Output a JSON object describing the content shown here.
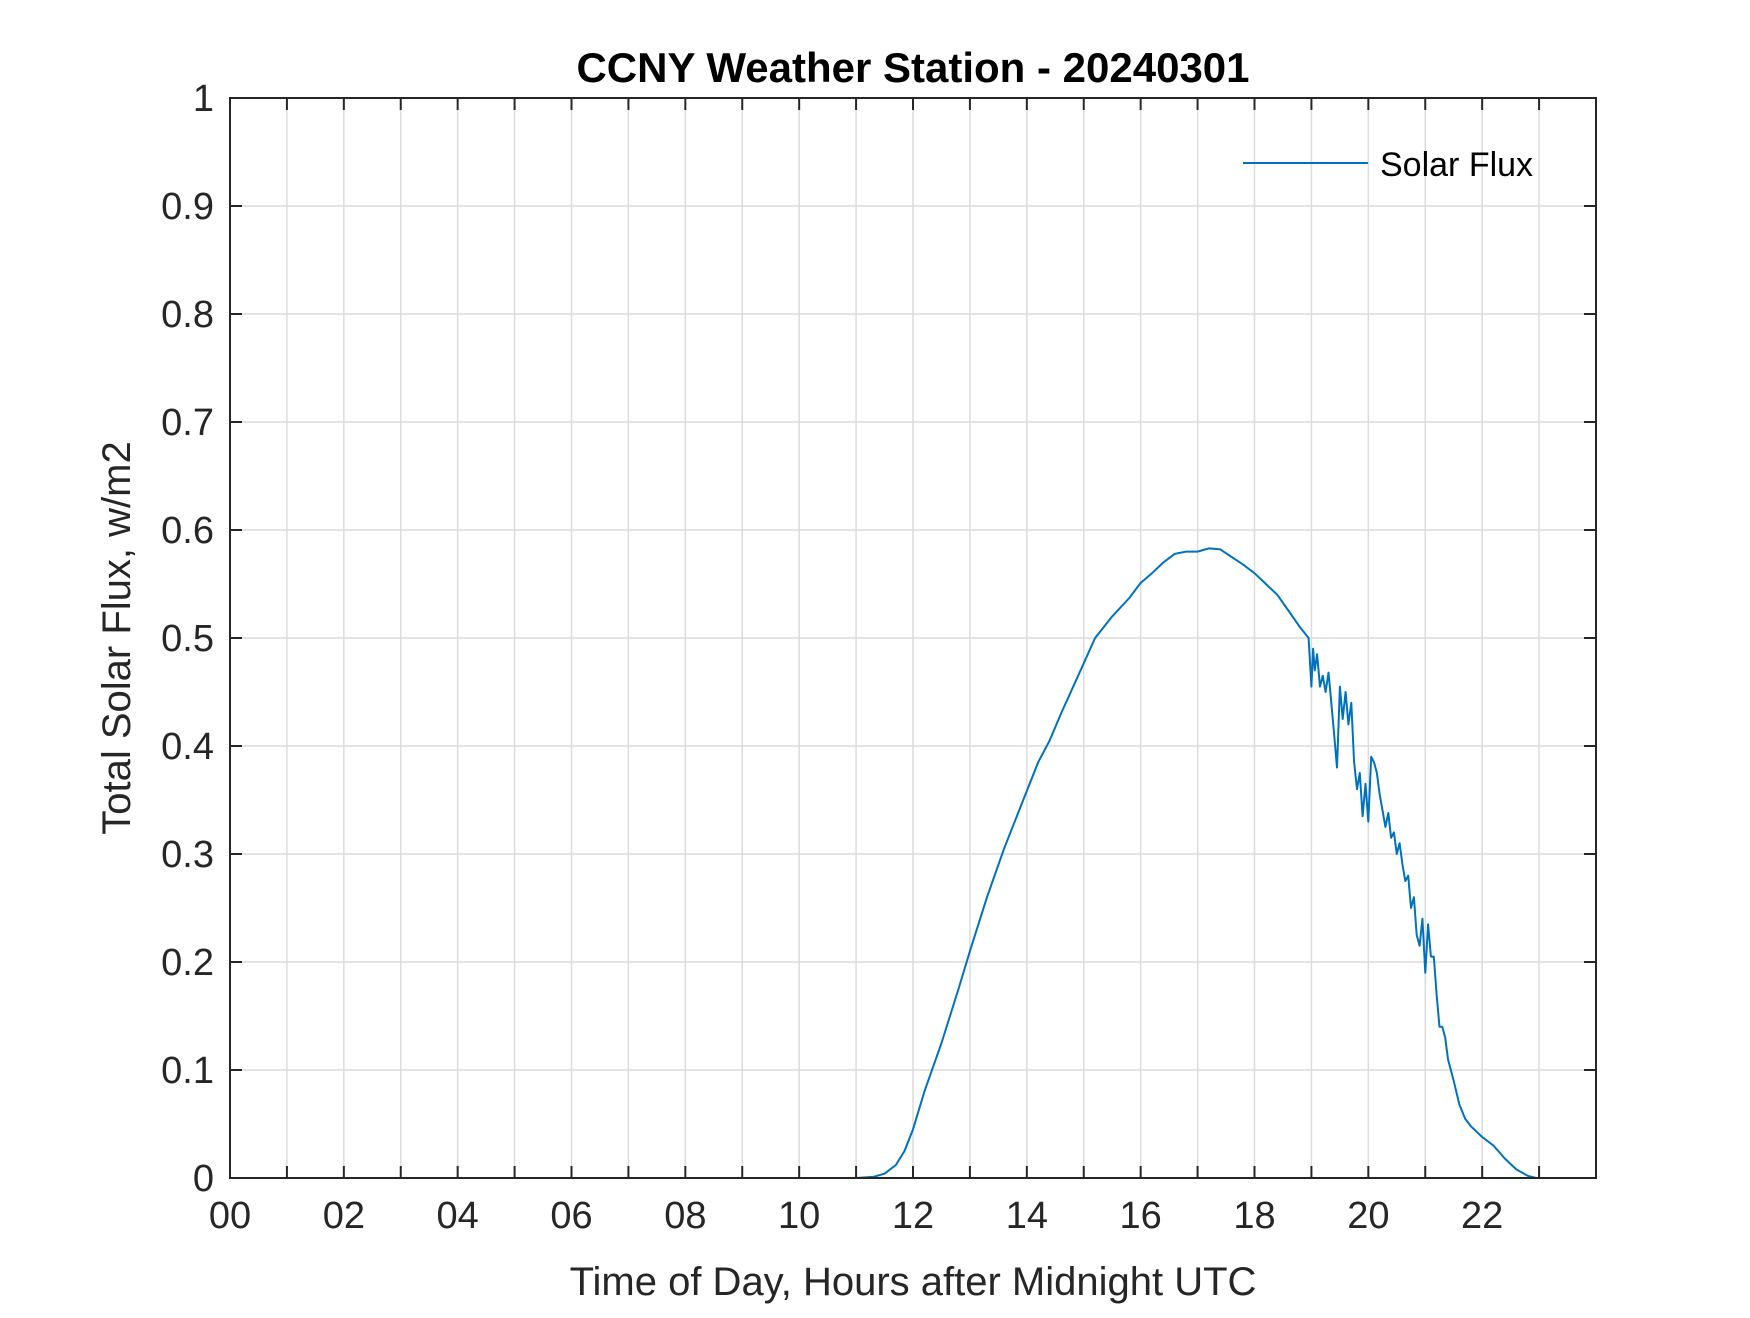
{
  "chart_data": {
    "type": "line",
    "title": "CCNY Weather Station - 20240301",
    "xlabel": "Time of Day, Hours after Midnight UTC",
    "ylabel": "Total Solar Flux, w/m2",
    "xlim": [
      0,
      24
    ],
    "ylim": [
      0,
      1
    ],
    "x_ticks": [
      0,
      2,
      4,
      6,
      8,
      10,
      12,
      14,
      16,
      18,
      20,
      22
    ],
    "x_tick_labels": [
      "00",
      "02",
      "04",
      "06",
      "08",
      "10",
      "12",
      "14",
      "16",
      "18",
      "20",
      "22"
    ],
    "y_ticks": [
      0,
      0.1,
      0.2,
      0.3,
      0.4,
      0.5,
      0.6,
      0.7,
      0.8,
      0.9,
      1
    ],
    "y_tick_labels": [
      "0",
      "0.1",
      "0.2",
      "0.3",
      "0.4",
      "0.5",
      "0.6",
      "0.7",
      "0.8",
      "0.9",
      "1"
    ],
    "grid": true,
    "legend": {
      "position": "top-right",
      "entries": [
        "Solar Flux"
      ]
    },
    "series": [
      {
        "name": "Solar Flux",
        "color": "#0072BD",
        "x": [
          0,
          11.0,
          11.3,
          11.5,
          11.7,
          11.85,
          12.0,
          12.2,
          12.5,
          12.8,
          13.0,
          13.3,
          13.6,
          13.9,
          14.2,
          14.4,
          14.6,
          14.9,
          15.2,
          15.5,
          15.8,
          16.0,
          16.2,
          16.4,
          16.6,
          16.8,
          17.0,
          17.2,
          17.4,
          17.6,
          17.8,
          18.0,
          18.2,
          18.4,
          18.6,
          18.8,
          18.95,
          19.0,
          19.03,
          19.06,
          19.1,
          19.15,
          19.2,
          19.25,
          19.3,
          19.35,
          19.4,
          19.45,
          19.5,
          19.55,
          19.6,
          19.65,
          19.7,
          19.75,
          19.8,
          19.85,
          19.9,
          19.95,
          20.0,
          20.05,
          20.1,
          20.15,
          20.2,
          20.25,
          20.3,
          20.35,
          20.4,
          20.45,
          20.5,
          20.55,
          20.6,
          20.65,
          20.7,
          20.75,
          20.8,
          20.85,
          20.9,
          20.95,
          21.0,
          21.05,
          21.1,
          21.15,
          21.2,
          21.25,
          21.3,
          21.35,
          21.4,
          21.5,
          21.6,
          21.7,
          21.8,
          22.0,
          22.2,
          22.4,
          22.6,
          22.8,
          22.95,
          23.0,
          23.2,
          24.0
        ],
        "values": [
          0,
          0,
          0.001,
          0.004,
          0.012,
          0.025,
          0.045,
          0.08,
          0.125,
          0.175,
          0.21,
          0.26,
          0.305,
          0.345,
          0.385,
          0.405,
          0.43,
          0.465,
          0.5,
          0.52,
          0.537,
          0.551,
          0.56,
          0.57,
          0.578,
          0.58,
          0.58,
          0.583,
          0.582,
          0.575,
          0.568,
          0.56,
          0.55,
          0.54,
          0.525,
          0.51,
          0.5,
          0.455,
          0.49,
          0.47,
          0.485,
          0.455,
          0.465,
          0.45,
          0.468,
          0.44,
          0.41,
          0.38,
          0.455,
          0.425,
          0.45,
          0.42,
          0.44,
          0.385,
          0.36,
          0.375,
          0.335,
          0.365,
          0.33,
          0.39,
          0.385,
          0.375,
          0.355,
          0.34,
          0.325,
          0.338,
          0.315,
          0.32,
          0.3,
          0.31,
          0.29,
          0.275,
          0.28,
          0.25,
          0.26,
          0.225,
          0.215,
          0.24,
          0.19,
          0.235,
          0.205,
          0.205,
          0.17,
          0.14,
          0.14,
          0.13,
          0.11,
          0.09,
          0.068,
          0.055,
          0.048,
          0.038,
          0.03,
          0.018,
          0.008,
          0.002,
          0,
          0,
          0,
          0
        ]
      }
    ]
  }
}
